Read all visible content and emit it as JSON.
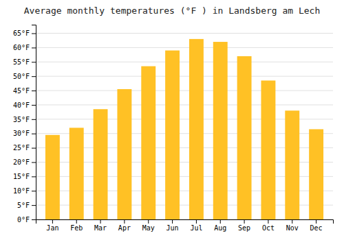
{
  "chart_data": {
    "type": "bar",
    "title": "Average monthly temperatures (°F ) in Landsberg am Lech",
    "categories": [
      "Jan",
      "Feb",
      "Mar",
      "Apr",
      "May",
      "Jun",
      "Jul",
      "Aug",
      "Sep",
      "Oct",
      "Nov",
      "Dec"
    ],
    "values": [
      29.5,
      32.0,
      38.5,
      45.5,
      53.5,
      59.0,
      63.0,
      62.0,
      57.0,
      48.5,
      38.0,
      31.5
    ],
    "color": "#FFC125",
    "ylim": [
      0,
      68
    ],
    "yticks": [
      {
        "value": 0,
        "label": "0°F"
      },
      {
        "value": 5,
        "label": "5°F"
      },
      {
        "value": 10,
        "label": "10°F"
      },
      {
        "value": 15,
        "label": "15°F"
      },
      {
        "value": 20,
        "label": "20°F"
      },
      {
        "value": 25,
        "label": "25°F"
      },
      {
        "value": 30,
        "label": "30°F"
      },
      {
        "value": 35,
        "label": "35°F"
      },
      {
        "value": 40,
        "label": "40°F"
      },
      {
        "value": 45,
        "label": "45°F"
      },
      {
        "value": 50,
        "label": "50°F"
      },
      {
        "value": 55,
        "label": "55°F"
      },
      {
        "value": 60,
        "label": "60°F"
      },
      {
        "value": 65,
        "label": "65°F"
      }
    ],
    "grid": true
  }
}
